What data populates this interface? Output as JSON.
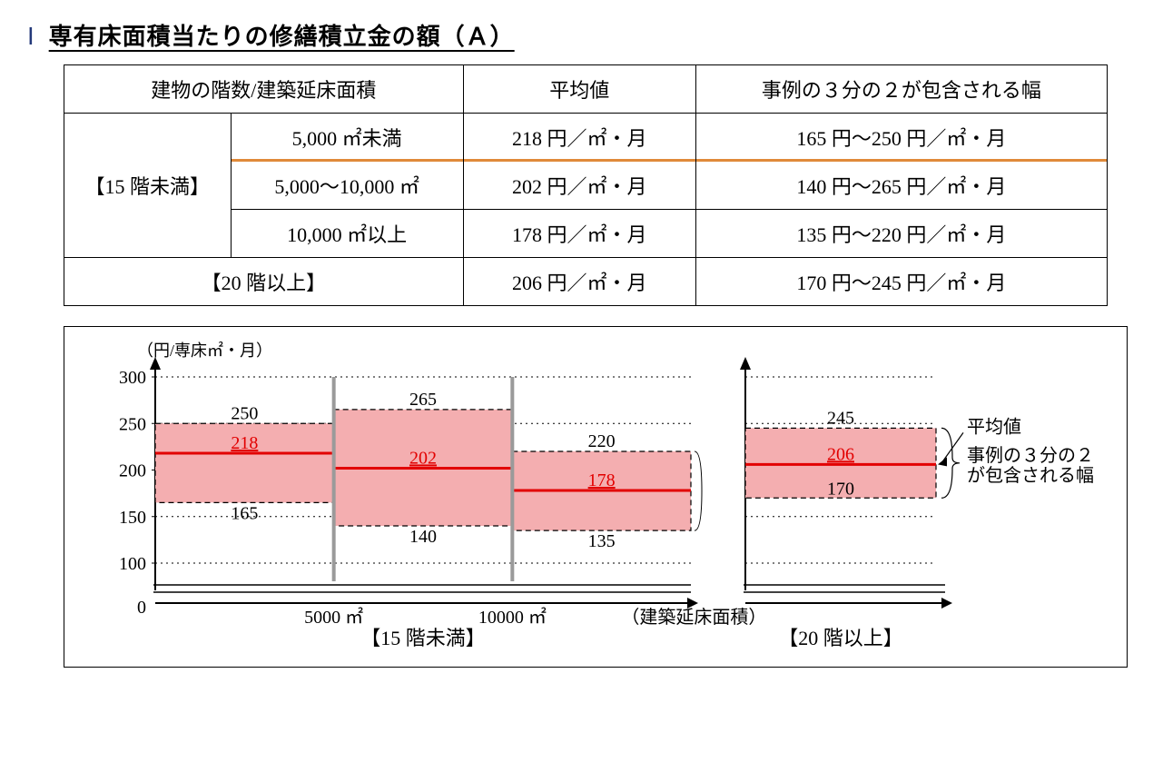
{
  "section": {
    "number": "Ⅰ",
    "title": "専有床面積当たりの修繕積立金の額（Ａ）"
  },
  "table": {
    "headers": {
      "col1": "建物の階数/建築延床面積",
      "col2": "平均値",
      "col3": "事例の３分の２が包含される幅"
    },
    "group15_label": "【15 階未満】",
    "group20_label": "【20 階以上】",
    "rows": [
      {
        "area": "5,000 ㎡未満",
        "avg": "218 円／㎡・月",
        "range": "165 円～250 円／㎡・月",
        "highlight": true
      },
      {
        "area": "5,000～10,000 ㎡",
        "avg": "202 円／㎡・月",
        "range": "140 円～265 円／㎡・月",
        "highlight": false
      },
      {
        "area": "10,000 ㎡以上",
        "avg": "178 円／㎡・月",
        "range": "135 円～220 円／㎡・月",
        "highlight": false
      }
    ],
    "row20": {
      "avg": "206 円／㎡・月",
      "range": "170 円～245 円／㎡・月"
    }
  },
  "chart": {
    "y_axis_label": "（円/専床㎡・月）",
    "y_ticks": [
      0,
      100,
      150,
      200,
      250,
      300
    ],
    "y_tick_labels": [
      "0",
      "100",
      "150",
      "200",
      "250",
      "300"
    ],
    "x_axis_label": "（建築延床面積）",
    "x_tick_labels": [
      "5000 ㎡",
      "10000 ㎡"
    ],
    "group_labels": {
      "left": "【15 階未満】",
      "right": "【20 階以上】"
    },
    "legend": {
      "avg": "平均値",
      "range_l1": "事例の３分の２",
      "range_l2": "が包含される幅"
    },
    "bars_left": [
      {
        "low": 165,
        "avg": 218,
        "high": 250
      },
      {
        "low": 140,
        "avg": 202,
        "high": 265
      },
      {
        "low": 135,
        "avg": 178,
        "high": 220
      }
    ],
    "bar_right": {
      "low": 170,
      "avg": 206,
      "high": 245
    },
    "colors": {
      "band_fill": "#f4aeb0",
      "band_stroke": "#000000",
      "avg_line": "#e20000",
      "axis": "#000000",
      "divider": "#9a9a9a",
      "text_red": "#e20000",
      "text": "#000000",
      "grid_dot": "#000000"
    },
    "fontsize": 20
  }
}
